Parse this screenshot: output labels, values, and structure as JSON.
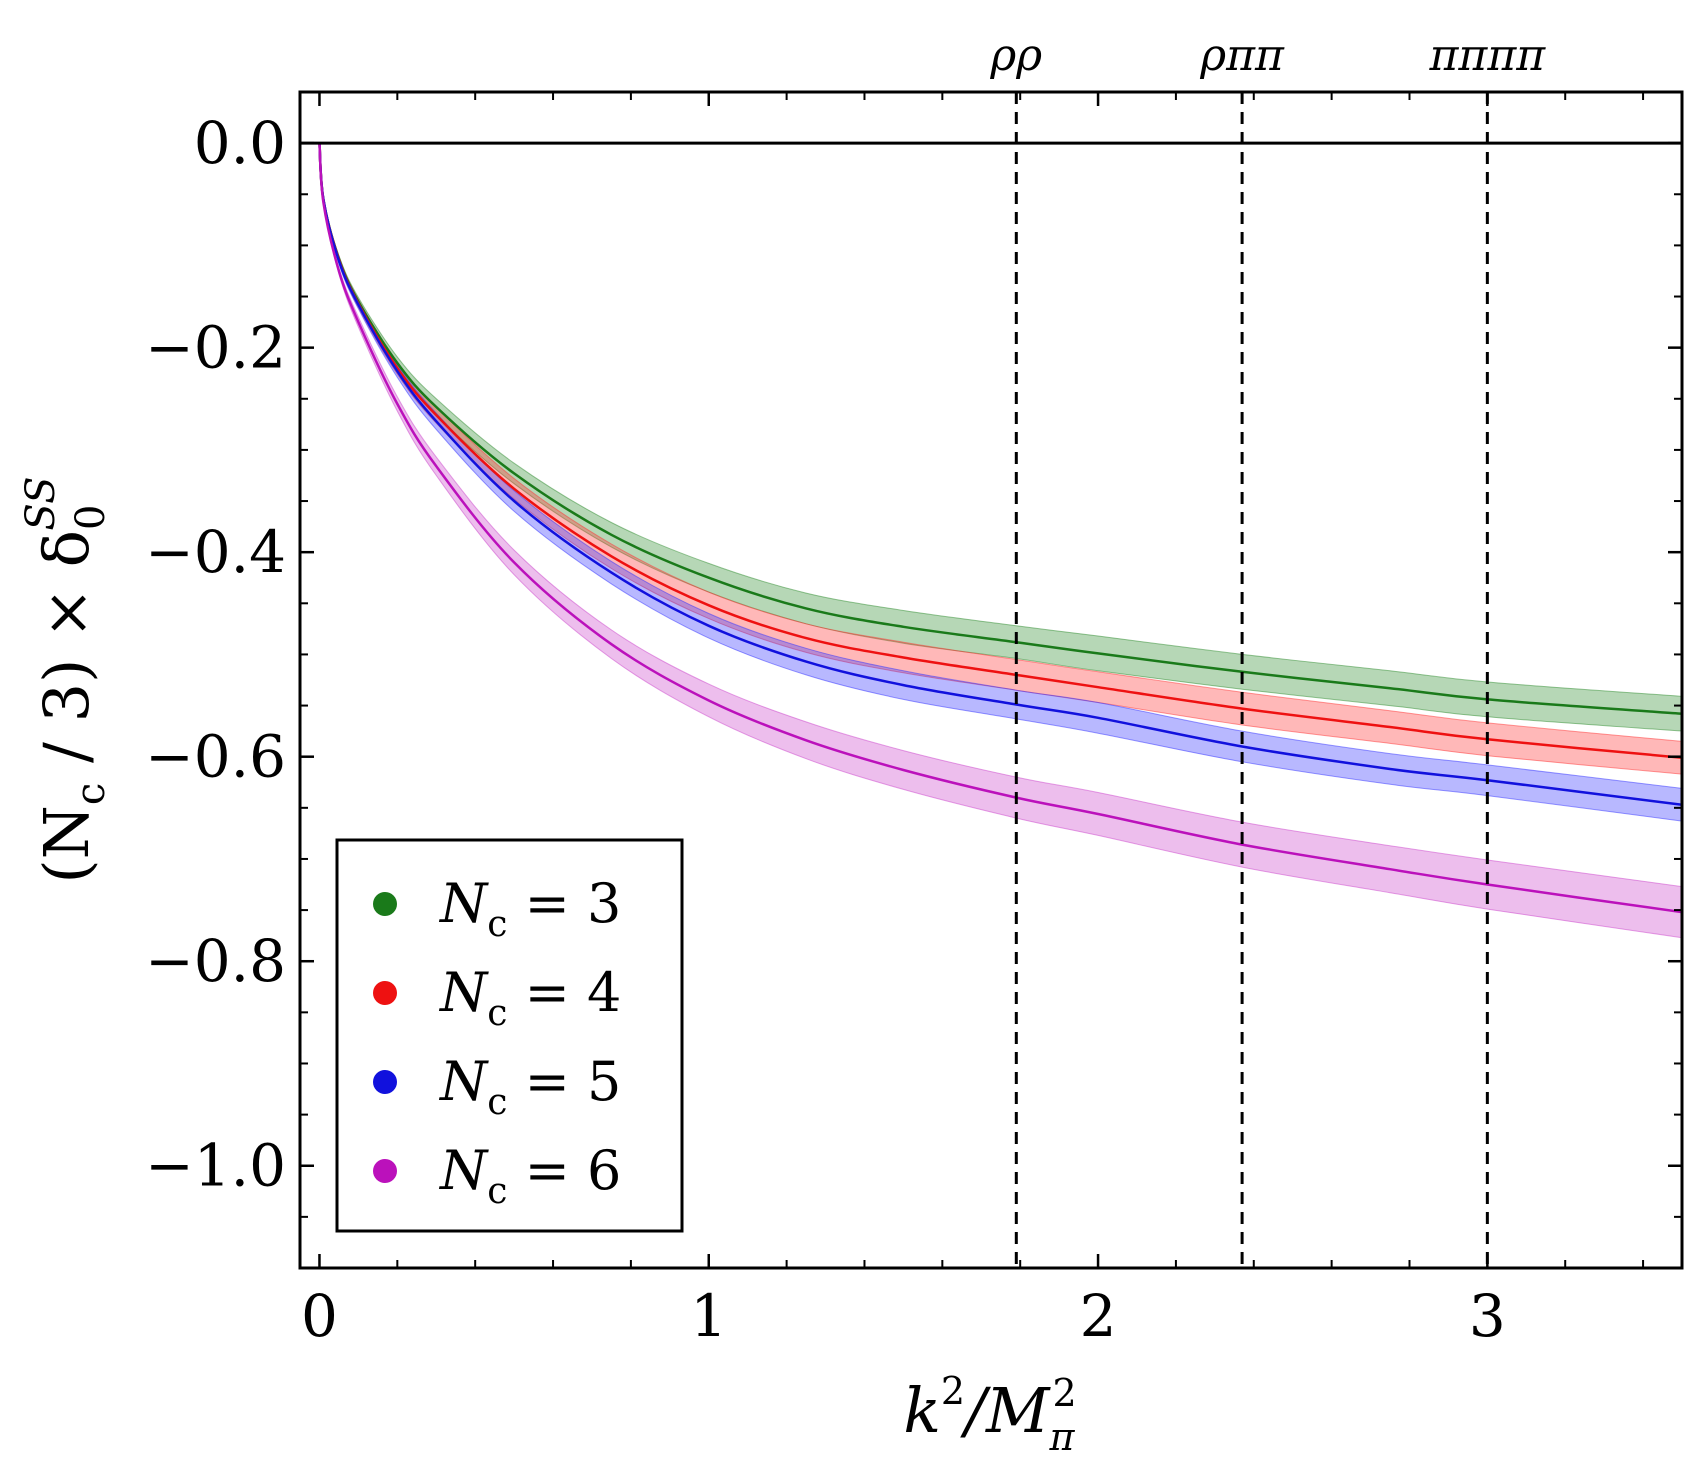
{
  "chart_data": {
    "type": "line",
    "xlabel_parts": [
      "k",
      "2",
      "/M",
      "π",
      "2"
    ],
    "ylabel_parts": [
      "(N",
      "c",
      " / 3) × δ",
      "0",
      "SS"
    ],
    "xlim": [
      -0.05,
      3.5
    ],
    "ylim": [
      -1.1,
      0.05
    ],
    "xticks": [
      0,
      1,
      2,
      3
    ],
    "xtick_labels": [
      "0",
      "1",
      "2",
      "3"
    ],
    "yticks": [
      0.0,
      -0.2,
      -0.4,
      -0.6,
      -0.8,
      -1.0
    ],
    "ytick_labels": [
      "0.0",
      "−0.2",
      "−0.4",
      "−0.6",
      "−0.8",
      "−1.0"
    ],
    "reference_line_y": 0.0,
    "thresholds": [
      {
        "label": "ρρ",
        "x": 1.79
      },
      {
        "label": "ρππ",
        "x": 2.37
      },
      {
        "label": "ππππ",
        "x": 3.0
      }
    ],
    "legend_position": "bottom-left",
    "x": [
      0.0,
      0.01,
      0.05,
      0.1,
      0.2,
      0.3,
      0.5,
      0.75,
      1.0,
      1.25,
      1.5,
      1.79,
      2.0,
      2.37,
      2.75,
      3.0,
      3.5
    ],
    "series": [
      {
        "name": "N_c = 3",
        "legend_main": "N",
        "legend_sub": "c",
        "legend_value": "= 3",
        "color": "#1a7a1a",
        "band_color": "#2e8b2e",
        "values": [
          0.0,
          -0.055,
          -0.113,
          -0.155,
          -0.215,
          -0.258,
          -0.323,
          -0.383,
          -0.425,
          -0.455,
          -0.473,
          -0.488,
          -0.499,
          -0.517,
          -0.533,
          -0.544,
          -0.558
        ],
        "error": [
          0.0,
          0.001,
          0.003,
          0.004,
          0.006,
          0.008,
          0.01,
          0.012,
          0.014,
          0.015,
          0.016,
          0.016,
          0.017,
          0.017,
          0.017,
          0.017,
          0.017
        ]
      },
      {
        "name": "N_c = 4",
        "legend_main": "N",
        "legend_sub": "c",
        "legend_value": "= 4",
        "color": "#ee1111",
        "band_color": "#ff3333",
        "values": [
          0.0,
          -0.055,
          -0.114,
          -0.157,
          -0.22,
          -0.266,
          -0.338,
          -0.404,
          -0.452,
          -0.484,
          -0.503,
          -0.52,
          -0.532,
          -0.553,
          -0.571,
          -0.583,
          -0.601
        ],
        "error": [
          0.0,
          0.001,
          0.003,
          0.004,
          0.006,
          0.008,
          0.01,
          0.012,
          0.013,
          0.014,
          0.015,
          0.015,
          0.015,
          0.016,
          0.016,
          0.016,
          0.016
        ]
      },
      {
        "name": "N_c = 5",
        "legend_main": "N",
        "legend_sub": "c",
        "legend_value": "= 5",
        "color": "#1111dd",
        "band_color": "#3333ff",
        "values": [
          0.0,
          -0.055,
          -0.115,
          -0.158,
          -0.223,
          -0.272,
          -0.35,
          -0.42,
          -0.472,
          -0.507,
          -0.53,
          -0.549,
          -0.562,
          -0.59,
          -0.612,
          -0.623,
          -0.647
        ],
        "error": [
          0.0,
          0.001,
          0.003,
          0.004,
          0.006,
          0.008,
          0.01,
          0.011,
          0.012,
          0.013,
          0.014,
          0.014,
          0.015,
          0.015,
          0.015,
          0.015,
          0.016
        ]
      },
      {
        "name": "N_c = 6",
        "legend_main": "N",
        "legend_sub": "c",
        "legend_value": "= 6",
        "color": "#bb11bb",
        "band_color": "#cc44cc",
        "values": [
          0.0,
          -0.058,
          -0.125,
          -0.175,
          -0.255,
          -0.316,
          -0.41,
          -0.49,
          -0.545,
          -0.584,
          -0.613,
          -0.64,
          -0.656,
          -0.686,
          -0.71,
          -0.725,
          -0.752
        ],
        "error": [
          0.0,
          0.001,
          0.003,
          0.005,
          0.007,
          0.009,
          0.012,
          0.014,
          0.016,
          0.018,
          0.019,
          0.02,
          0.021,
          0.022,
          0.023,
          0.024,
          0.025
        ]
      }
    ]
  }
}
